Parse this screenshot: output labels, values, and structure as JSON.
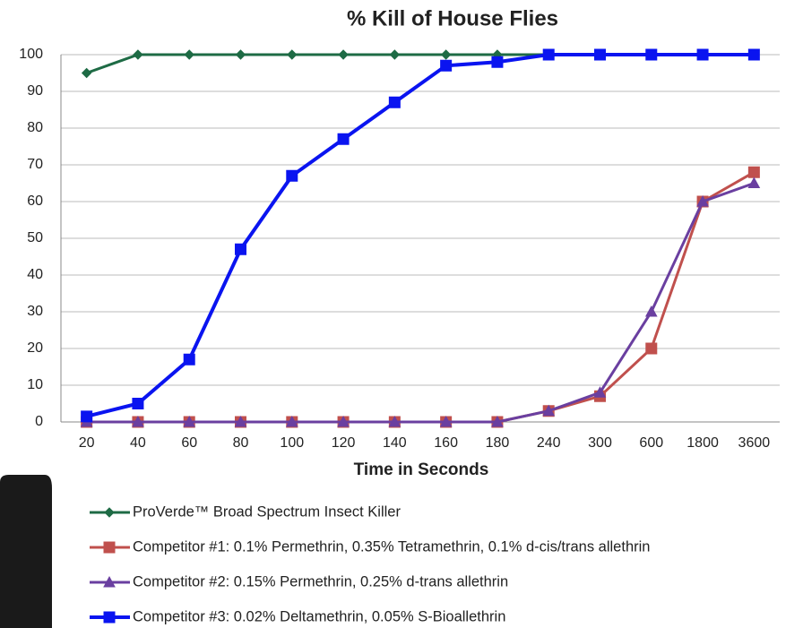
{
  "chart_data": {
    "type": "line",
    "title": "% Kill of House Flies",
    "x_label": "Time in Seconds",
    "categories": [
      "20",
      "40",
      "60",
      "80",
      "100",
      "120",
      "140",
      "160",
      "180",
      "240",
      "300",
      "600",
      "1800",
      "3600"
    ],
    "series": [
      {
        "name": "ProVerde™ Broad Spectrum Insect Killer",
        "color": "#1e6b45",
        "marker": "diamond",
        "values": [
          95,
          100,
          100,
          100,
          100,
          100,
          100,
          100,
          100,
          100,
          100,
          100,
          100,
          100
        ]
      },
      {
        "name": "Competitor #1: 0.1% Permethrin, 0.35% Tetramethrin, 0.1% d-cis/trans allethrin",
        "color": "#c0504d",
        "marker": "square",
        "values": [
          0,
          0,
          0,
          0,
          0,
          0,
          0,
          0,
          0,
          3,
          7,
          20,
          60,
          68
        ]
      },
      {
        "name": "Competitor #2: 0.15% Permethrin, 0.25% d-trans allethrin",
        "color": "#6a3fa0",
        "marker": "triangle",
        "values": [
          0,
          0,
          0,
          0,
          0,
          0,
          0,
          0,
          0,
          3,
          8,
          30,
          60,
          65
        ]
      },
      {
        "name": "Competitor #3: 0.02% Deltamethrin, 0.05% S-Bioallethrin",
        "color": "#0a14f0",
        "marker": "square",
        "values": [
          1.5,
          5,
          17,
          47,
          67,
          77,
          87,
          97,
          98,
          100,
          100,
          100,
          100,
          100
        ]
      }
    ],
    "ylim": [
      0,
      100
    ],
    "yticks": [
      0,
      10,
      20,
      30,
      40,
      50,
      60,
      70,
      80,
      90,
      100
    ],
    "grid": true,
    "legend": "bottom"
  }
}
